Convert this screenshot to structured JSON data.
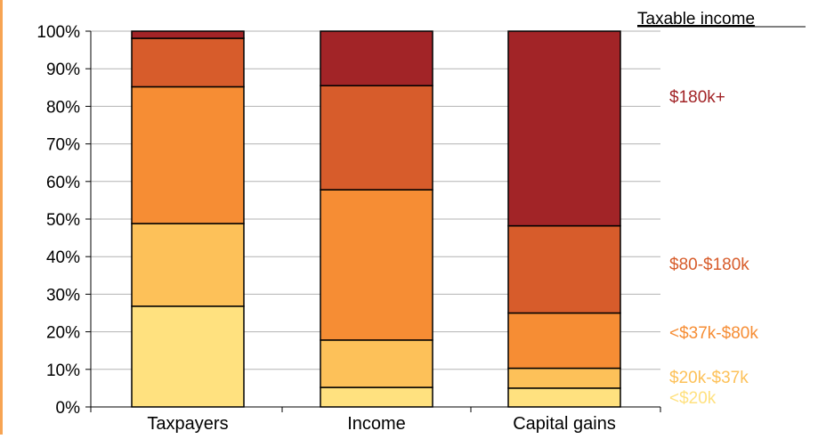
{
  "chart_data": {
    "type": "bar",
    "stacked": true,
    "categories": [
      "Taxpayers",
      "Income",
      "Capital gains"
    ],
    "series": [
      {
        "name": "<$20k",
        "values": [
          26.8,
          5.2,
          5.0
        ],
        "color": "#ffe17f"
      },
      {
        "name": "$20k-$37k",
        "values": [
          22.0,
          12.6,
          5.3
        ],
        "color": "#fdc159"
      },
      {
        "name": "<$37k-$80k",
        "values": [
          36.4,
          40.0,
          14.7
        ],
        "color": "#f68d34"
      },
      {
        "name": "$80-$180k",
        "values": [
          12.9,
          27.7,
          23.2
        ],
        "color": "#d75c2b"
      },
      {
        "name": "$180k+",
        "values": [
          1.9,
          14.5,
          51.8
        ],
        "color": "#a22427"
      }
    ],
    "ylim": [
      0,
      100
    ],
    "yticks": [
      "0%",
      "10%",
      "20%",
      "30%",
      "40%",
      "50%",
      "60%",
      "70%",
      "80%",
      "90%",
      "100%"
    ],
    "legend_title": "Taxable income",
    "legend_position": "right",
    "grid": true
  }
}
